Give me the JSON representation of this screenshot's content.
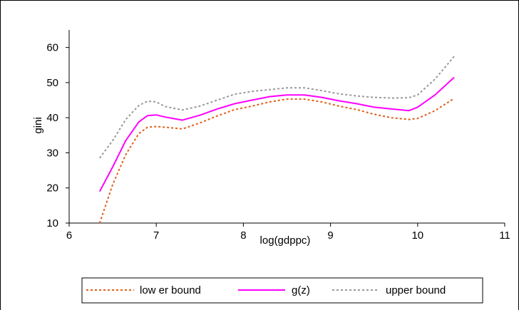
{
  "chart_data": {
    "type": "line",
    "title": "",
    "xlabel": "log(gdppc)",
    "ylabel": "gini",
    "xlim": [
      6,
      11
    ],
    "ylim": [
      10,
      65
    ],
    "x_ticks": [
      6,
      7,
      8,
      9,
      10,
      11
    ],
    "y_ticks": [
      10,
      20,
      30,
      40,
      50,
      60
    ],
    "x_tick_labels": [
      "6",
      "7",
      "8",
      "9",
      "10",
      "11"
    ],
    "y_tick_labels": [
      "10",
      "20",
      "30",
      "40",
      "50",
      "60"
    ],
    "grid": false,
    "legend_position": "bottom",
    "series": [
      {
        "name": "low er bound",
        "color": "#e0601a",
        "style": "dashed",
        "x": [
          6.35,
          6.5,
          6.65,
          6.8,
          6.9,
          7.0,
          7.1,
          7.3,
          7.5,
          7.7,
          7.9,
          8.1,
          8.3,
          8.5,
          8.7,
          8.9,
          9.1,
          9.3,
          9.5,
          9.7,
          9.9,
          10.0,
          10.2,
          10.42
        ],
        "y": [
          10.0,
          21.0,
          29.5,
          35.5,
          37.3,
          37.5,
          37.3,
          36.8,
          38.5,
          40.5,
          42.3,
          43.3,
          44.5,
          45.3,
          45.3,
          44.5,
          43.3,
          42.3,
          41.0,
          40.0,
          39.5,
          39.8,
          42.0,
          45.5
        ]
      },
      {
        "name": "g(z)",
        "color": "#ff00ff",
        "style": "solid",
        "x": [
          6.35,
          6.5,
          6.65,
          6.8,
          6.9,
          7.0,
          7.1,
          7.3,
          7.5,
          7.7,
          7.9,
          8.1,
          8.3,
          8.5,
          8.7,
          8.9,
          9.1,
          9.3,
          9.5,
          9.7,
          9.9,
          10.0,
          10.2,
          10.42
        ],
        "y": [
          19.0,
          26.0,
          33.5,
          38.8,
          40.6,
          40.8,
          40.2,
          39.3,
          40.7,
          42.5,
          44.0,
          45.0,
          46.0,
          46.5,
          46.5,
          45.8,
          44.8,
          44.0,
          43.0,
          42.5,
          42.0,
          43.0,
          46.5,
          51.5
        ]
      },
      {
        "name": "upper bound",
        "color": "#999999",
        "style": "dashed",
        "x": [
          6.35,
          6.5,
          6.65,
          6.8,
          6.9,
          7.0,
          7.1,
          7.3,
          7.5,
          7.7,
          7.9,
          8.1,
          8.3,
          8.5,
          8.7,
          8.9,
          9.1,
          9.3,
          9.5,
          9.7,
          9.9,
          10.0,
          10.2,
          10.42
        ],
        "y": [
          28.5,
          33.5,
          39.5,
          43.5,
          44.7,
          44.5,
          43.2,
          42.2,
          43.3,
          45.0,
          46.7,
          47.5,
          48.0,
          48.5,
          48.5,
          47.7,
          46.8,
          46.2,
          45.8,
          45.6,
          45.7,
          46.5,
          51.0,
          57.5
        ]
      }
    ]
  }
}
